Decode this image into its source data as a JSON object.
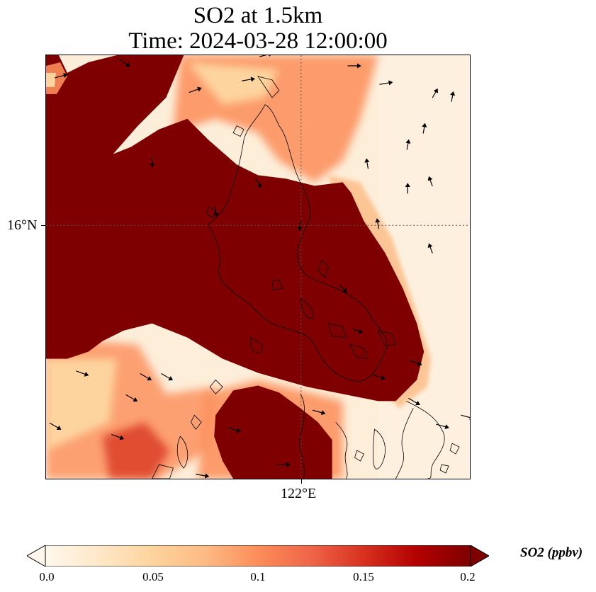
{
  "title": {
    "line1": "SO2 at 1.5km",
    "line2": "Time: 2024-03-28 12:00:00"
  },
  "map": {
    "lat_tick": "16°N",
    "lon_tick": "122°E",
    "gridlines": true,
    "coastlines": true,
    "wind_vectors": true
  },
  "colorbar": {
    "label": "SO2 (ppbv)",
    "ticks": [
      "0.0",
      "0.05",
      "0.1",
      "0.15",
      "0.2"
    ],
    "min": 0.0,
    "max": 0.2,
    "extend": "both",
    "colormap": "OrRd",
    "colors": [
      "#fff7ec",
      "#fee8c8",
      "#fdd49e",
      "#fdbb84",
      "#fc8d59",
      "#ef6548",
      "#d7301f",
      "#b30000",
      "#7f0000"
    ]
  }
}
